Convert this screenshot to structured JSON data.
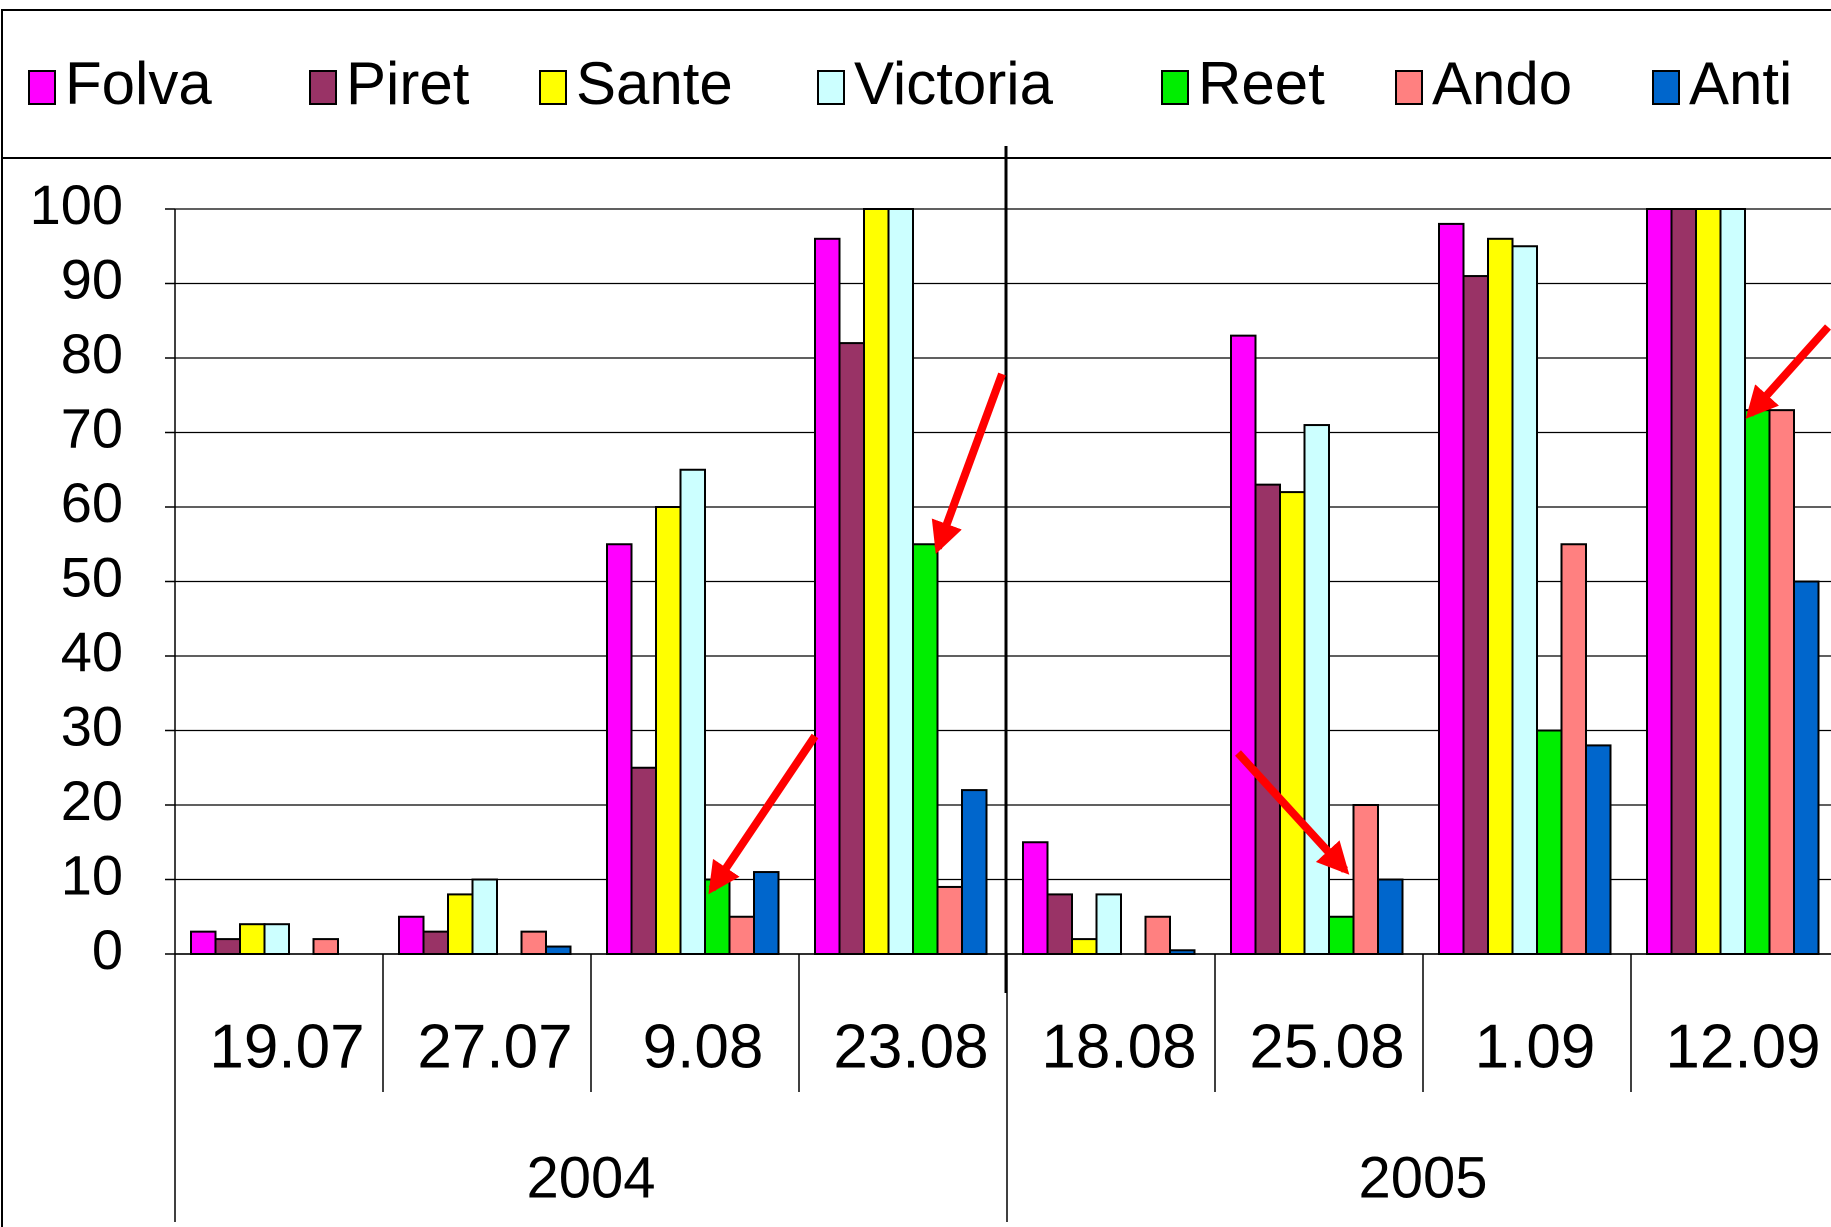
{
  "chart_data": {
    "type": "bar",
    "category_groups": [
      {
        "label": "2004",
        "categories": [
          "19.07",
          "27.07",
          "9.08",
          "23.08"
        ]
      },
      {
        "label": "2005",
        "categories": [
          "18.08",
          "25.08",
          "1.09",
          "12.09"
        ]
      }
    ],
    "series": [
      {
        "name": "Folva",
        "color": "#ff00ff",
        "values": [
          3,
          5,
          55,
          96,
          15,
          83,
          98,
          100
        ]
      },
      {
        "name": "Piret",
        "color": "#993366",
        "values": [
          2,
          3,
          25,
          82,
          8,
          63,
          91,
          100
        ]
      },
      {
        "name": "Sante",
        "color": "#ffff00",
        "values": [
          4,
          8,
          60,
          100,
          2,
          62,
          96,
          100
        ]
      },
      {
        "name": "Victoria",
        "color": "#ccffff",
        "values": [
          4,
          10,
          65,
          100,
          8,
          71,
          95,
          100
        ]
      },
      {
        "name": "Reet",
        "color": "#00ee00",
        "values": [
          0,
          0,
          10,
          55,
          0,
          5,
          30,
          73
        ]
      },
      {
        "name": "Ando",
        "color": "#ff8080",
        "values": [
          2,
          3,
          5,
          9,
          5,
          20,
          55,
          73
        ]
      },
      {
        "name": "Anti",
        "color": "#0066cc",
        "values": [
          0,
          1,
          11,
          22,
          0.5,
          10,
          28,
          50
        ]
      }
    ],
    "ylim": [
      0,
      100
    ],
    "yticks": [
      0,
      10,
      20,
      30,
      40,
      50,
      60,
      70,
      80,
      90,
      100
    ],
    "grid": true
  }
}
